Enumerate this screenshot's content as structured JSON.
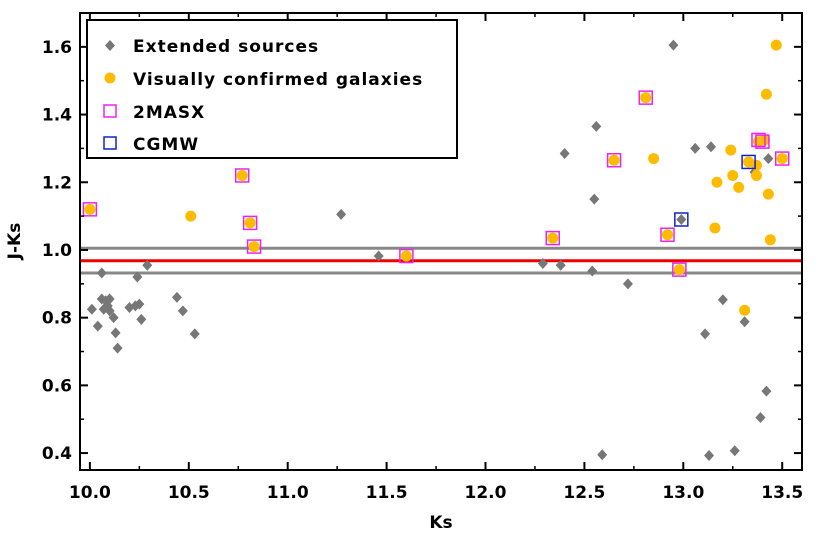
{
  "chart_data": {
    "type": "scatter",
    "xlabel": "Ks",
    "ylabel": "J-Ks",
    "xlim": [
      9.95,
      13.6
    ],
    "ylim": [
      0.35,
      1.7
    ],
    "x_ticks": [
      "10.0",
      "10.5",
      "11.0",
      "11.5",
      "12.0",
      "12.5",
      "13.0",
      "13.5"
    ],
    "x_tick_values": [
      10.0,
      10.5,
      11.0,
      11.5,
      12.0,
      12.5,
      13.0,
      13.5
    ],
    "y_ticks": [
      "0.4",
      "0.6",
      "0.8",
      "1.0",
      "1.2",
      "1.4",
      "1.6"
    ],
    "y_tick_values": [
      0.4,
      0.6,
      0.8,
      1.0,
      1.2,
      1.4,
      1.6
    ],
    "grid": false,
    "legend_position": "top-left",
    "hlines": [
      {
        "y": 1.005,
        "color": "#888888"
      },
      {
        "y": 0.968,
        "color": "#ee0000"
      },
      {
        "y": 0.932,
        "color": "#888888"
      }
    ],
    "series": [
      {
        "name": "Extended sources",
        "marker": "diamond",
        "color": "#777777",
        "points": [
          [
            10.0,
            1.12
          ],
          [
            10.01,
            0.825
          ],
          [
            10.04,
            0.775
          ],
          [
            10.06,
            0.932
          ],
          [
            10.06,
            0.855
          ],
          [
            10.07,
            0.825
          ],
          [
            10.08,
            0.85
          ],
          [
            10.09,
            0.835
          ],
          [
            10.1,
            0.855
          ],
          [
            10.1,
            0.82
          ],
          [
            10.12,
            0.8
          ],
          [
            10.13,
            0.755
          ],
          [
            10.14,
            0.71
          ],
          [
            10.2,
            0.83
          ],
          [
            10.23,
            0.835
          ],
          [
            10.24,
            0.92
          ],
          [
            10.25,
            0.84
          ],
          [
            10.26,
            0.795
          ],
          [
            10.29,
            0.955
          ],
          [
            10.44,
            0.86
          ],
          [
            10.47,
            0.82
          ],
          [
            10.53,
            0.752
          ],
          [
            10.77,
            1.22
          ],
          [
            10.81,
            1.08
          ],
          [
            10.83,
            1.01
          ],
          [
            11.27,
            1.105
          ],
          [
            11.46,
            0.982
          ],
          [
            11.6,
            0.982
          ],
          [
            12.29,
            0.96
          ],
          [
            12.34,
            1.035
          ],
          [
            12.38,
            0.955
          ],
          [
            12.4,
            1.285
          ],
          [
            12.54,
            0.938
          ],
          [
            12.55,
            1.15
          ],
          [
            12.56,
            1.365
          ],
          [
            12.59,
            0.395
          ],
          [
            12.65,
            1.265
          ],
          [
            12.72,
            0.9
          ],
          [
            12.81,
            1.45
          ],
          [
            12.92,
            1.045
          ],
          [
            12.95,
            1.605
          ],
          [
            12.98,
            0.942
          ],
          [
            12.99,
            1.09
          ],
          [
            13.06,
            1.3
          ],
          [
            13.11,
            0.752
          ],
          [
            13.13,
            0.393
          ],
          [
            13.14,
            1.305
          ],
          [
            13.2,
            0.853
          ],
          [
            13.26,
            0.407
          ],
          [
            13.31,
            0.788
          ],
          [
            13.33,
            1.26
          ],
          [
            13.36,
            1.23
          ],
          [
            13.38,
            1.32
          ],
          [
            13.39,
            0.505
          ],
          [
            13.42,
            0.583
          ],
          [
            13.43,
            1.27
          ],
          [
            13.5,
            1.27
          ]
        ]
      },
      {
        "name": "Visually confirmed galaxies",
        "marker": "circle",
        "color": "#ffbb00",
        "points": [
          [
            10.0,
            1.12
          ],
          [
            10.51,
            1.1
          ],
          [
            10.77,
            1.22
          ],
          [
            10.81,
            1.08
          ],
          [
            10.83,
            1.01
          ],
          [
            11.6,
            0.982
          ],
          [
            12.34,
            1.035
          ],
          [
            12.65,
            1.265
          ],
          [
            12.81,
            1.45
          ],
          [
            12.85,
            1.27
          ],
          [
            12.92,
            1.045
          ],
          [
            12.98,
            0.942
          ],
          [
            13.16,
            1.065
          ],
          [
            13.17,
            1.2
          ],
          [
            13.24,
            1.295
          ],
          [
            13.25,
            1.22
          ],
          [
            13.28,
            1.185
          ],
          [
            13.31,
            0.822
          ],
          [
            13.33,
            1.26
          ],
          [
            13.37,
            1.22
          ],
          [
            13.37,
            1.25
          ],
          [
            13.38,
            1.32
          ],
          [
            13.41,
            1.325
          ],
          [
            13.42,
            1.46
          ],
          [
            13.43,
            1.165
          ],
          [
            13.44,
            1.03
          ],
          [
            13.47,
            1.605
          ],
          [
            13.5,
            1.27
          ]
        ]
      },
      {
        "name": "2MASX",
        "marker": "square-open",
        "color": "#ee22ee",
        "points": [
          [
            10.0,
            1.12
          ],
          [
            10.77,
            1.22
          ],
          [
            10.81,
            1.08
          ],
          [
            10.83,
            1.01
          ],
          [
            11.6,
            0.982
          ],
          [
            12.34,
            1.035
          ],
          [
            12.65,
            1.265
          ],
          [
            12.81,
            1.45
          ],
          [
            12.92,
            1.045
          ],
          [
            12.98,
            0.942
          ],
          [
            13.38,
            1.325
          ],
          [
            13.4,
            1.32
          ],
          [
            13.5,
            1.27
          ]
        ]
      },
      {
        "name": "CGMW",
        "marker": "square-open",
        "color": "#1122cc",
        "points": [
          [
            12.99,
            1.09
          ],
          [
            13.33,
            1.26
          ]
        ]
      }
    ]
  },
  "legend": {
    "items": [
      {
        "label": "Extended sources"
      },
      {
        "label": "Visually confirmed galaxies"
      },
      {
        "label": "2MASX"
      },
      {
        "label": "CGMW"
      }
    ]
  }
}
